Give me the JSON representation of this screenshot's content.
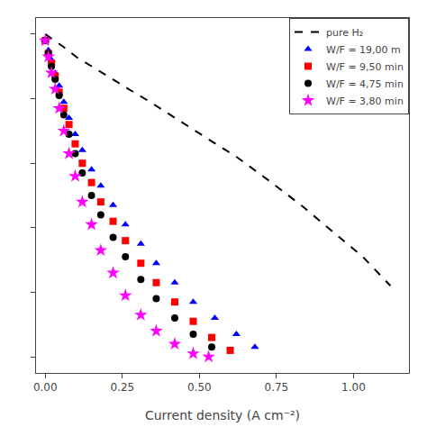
{
  "chart_data": {
    "type": "scatter",
    "xlabel": "Current density (A cm⁻²)",
    "xlim": [
      -0.03,
      1.18
    ],
    "ylim": [
      -0.05,
      1.05
    ],
    "xticks": [
      {
        "value": 0.0,
        "label": "0.00"
      },
      {
        "value": 0.25,
        "label": "0.25"
      },
      {
        "value": 0.5,
        "label": "0.50"
      },
      {
        "value": 0.75,
        "label": "0.75"
      },
      {
        "value": 1.0,
        "label": "1.00"
      }
    ],
    "yticks": [
      0.0,
      0.2,
      0.4,
      0.6,
      0.8,
      1.0
    ],
    "tick_labels": "x",
    "grid": false,
    "legend": "upper right",
    "series": [
      {
        "name": "pure H₂",
        "type": "line",
        "line_style": "dashed",
        "color": "#000000",
        "x": [
          0.0,
          0.03,
          0.06,
          0.1,
          0.15,
          0.2,
          0.27,
          0.34,
          0.42,
          0.52,
          0.62,
          0.72,
          0.83,
          0.93,
          1.03,
          1.12
        ],
        "values": [
          1.0,
          0.98,
          0.96,
          0.93,
          0.9,
          0.87,
          0.83,
          0.79,
          0.74,
          0.68,
          0.62,
          0.55,
          0.47,
          0.39,
          0.31,
          0.22
        ]
      },
      {
        "name": "W/F = 19,00 m",
        "type": "scatter",
        "marker": "triangle",
        "color": "#0000ff",
        "x": [
          0.0,
          0.01,
          0.02,
          0.032,
          0.045,
          0.06,
          0.077,
          0.097,
          0.12,
          0.15,
          0.18,
          0.22,
          0.26,
          0.31,
          0.36,
          0.42,
          0.48,
          0.55,
          0.62,
          0.68
        ],
        "values": [
          0.98,
          0.95,
          0.92,
          0.88,
          0.84,
          0.79,
          0.74,
          0.69,
          0.64,
          0.58,
          0.53,
          0.47,
          0.41,
          0.35,
          0.29,
          0.23,
          0.17,
          0.12,
          0.07,
          0.03
        ]
      },
      {
        "name": "W/F = 9,50 min",
        "type": "scatter",
        "marker": "square",
        "color": "#ff0000",
        "x": [
          0.0,
          0.01,
          0.02,
          0.032,
          0.045,
          0.06,
          0.077,
          0.097,
          0.12,
          0.15,
          0.18,
          0.22,
          0.26,
          0.31,
          0.36,
          0.42,
          0.48,
          0.54,
          0.6
        ],
        "values": [
          0.98,
          0.94,
          0.91,
          0.87,
          0.82,
          0.77,
          0.72,
          0.66,
          0.6,
          0.54,
          0.48,
          0.42,
          0.36,
          0.29,
          0.23,
          0.17,
          0.11,
          0.06,
          0.02
        ]
      },
      {
        "name": "W/F = 4,75 min",
        "type": "scatter",
        "marker": "circle",
        "color": "#000000",
        "x": [
          0.0,
          0.01,
          0.02,
          0.032,
          0.045,
          0.06,
          0.077,
          0.097,
          0.12,
          0.15,
          0.18,
          0.22,
          0.26,
          0.31,
          0.36,
          0.42,
          0.48,
          0.54
        ],
        "values": [
          0.98,
          0.94,
          0.9,
          0.86,
          0.81,
          0.75,
          0.69,
          0.63,
          0.57,
          0.5,
          0.44,
          0.37,
          0.31,
          0.24,
          0.18,
          0.12,
          0.07,
          0.03
        ]
      },
      {
        "name": "W/F = 3,80 min",
        "type": "scatter",
        "marker": "star",
        "color": "#ff00ff",
        "x": [
          0.0,
          0.01,
          0.02,
          0.032,
          0.045,
          0.06,
          0.077,
          0.097,
          0.12,
          0.15,
          0.18,
          0.22,
          0.26,
          0.31,
          0.36,
          0.42,
          0.48,
          0.53
        ],
        "values": [
          0.98,
          0.93,
          0.88,
          0.83,
          0.77,
          0.7,
          0.63,
          0.56,
          0.48,
          0.41,
          0.33,
          0.26,
          0.19,
          0.13,
          0.08,
          0.04,
          0.01,
          0.0
        ]
      }
    ]
  }
}
